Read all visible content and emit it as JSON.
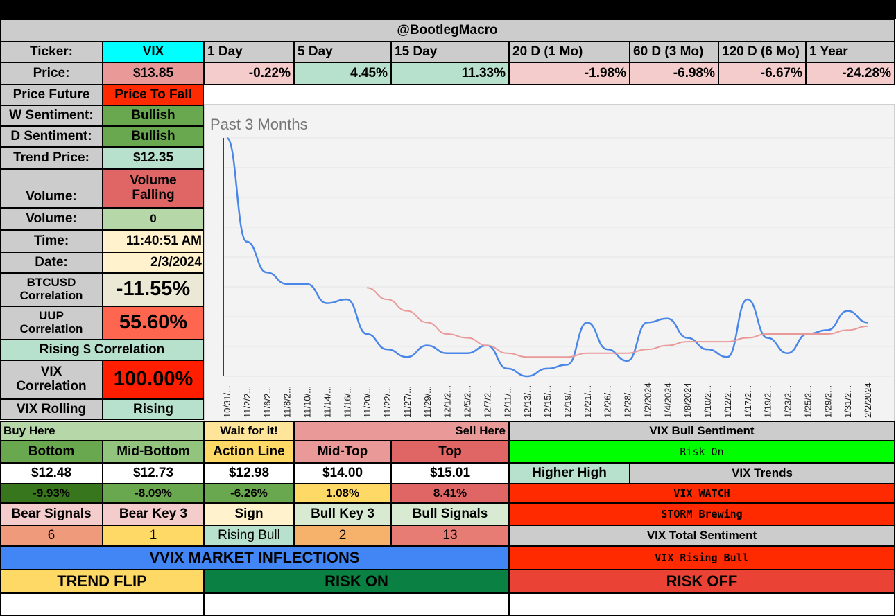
{
  "title": "@BootlegMacro",
  "header": {
    "ticker_label": "Ticker:",
    "ticker_value": "VIX",
    "price_label": "Price:",
    "price_value": "$13.85",
    "periods": [
      {
        "label": "1 Day",
        "value": "-0.22%",
        "color": "#f4cccc"
      },
      {
        "label": "5 Day",
        "value": "4.45%",
        "color": "#b7e1cd"
      },
      {
        "label": "15 Day",
        "value": "11.33%",
        "color": "#b7e1cd"
      },
      {
        "label": "20 D (1 Mo)",
        "value": "-1.98%",
        "color": "#f4cccc"
      },
      {
        "label": "60 D (3 Mo)",
        "value": "-6.98%",
        "color": "#f4cccc"
      },
      {
        "label": "120 D (6 Mo)",
        "value": "-6.67%",
        "color": "#f4cccc"
      },
      {
        "label": "1 Year",
        "value": "-24.28%",
        "color": "#f4cccc"
      }
    ]
  },
  "left": {
    "price_future_label": "Price Future",
    "price_future_value": "Price To Fall",
    "w_sent_label": "W Sentiment:",
    "w_sent_value": "Bullish",
    "d_sent_label": "D Sentiment:",
    "d_sent_value": "Bullish",
    "trend_label": "Trend Price:",
    "trend_value": "$12.35",
    "volume_label": "Volume:",
    "volume_value_1": "Volume",
    "volume_value_2": "Falling",
    "volume2_label": "Volume:",
    "volume2_value": "0",
    "time_label": "Time:",
    "time_value": "11:40:51 AM",
    "date_label": "Date:",
    "date_value": "2/3/2024",
    "btc_label_1": "BTCUSD",
    "btc_label_2": "Correlation",
    "btc_value": "-11.55%",
    "uup_label_1": "UUP",
    "uup_label_2": "Correlation",
    "uup_value": "55.60%",
    "rising_corr": "Rising $ Correlation",
    "vix_corr_label_1": "VIX",
    "vix_corr_label_2": "Correlation",
    "vix_corr_value": "100.00%",
    "vix_rolling_label": "VIX Rolling",
    "vix_rolling_value": "Rising"
  },
  "chart_data": {
    "type": "line",
    "title": "Past 3 Months",
    "x": [
      "10/31/...",
      "11/2/2...",
      "11/6/2...",
      "11/8/2...",
      "11/10/...",
      "11/14/...",
      "11/16/...",
      "11/20/...",
      "11/22/...",
      "11/27/...",
      "11/29/...",
      "12/1/2...",
      "12/5/2...",
      "12/7/2...",
      "12/11/...",
      "12/13/...",
      "12/15/...",
      "12/19/...",
      "12/21/...",
      "12/26/...",
      "12/28/...",
      "1/2/2024",
      "1/4/2024",
      "1/8/2024",
      "1/10/2...",
      "1/12/2...",
      "1/17/2...",
      "1/19/2...",
      "1/23/2...",
      "1/25/2...",
      "1/29/2...",
      "1/31/2...",
      "2/2/2024"
    ],
    "series": [
      {
        "color": "#4a86e8",
        "values": [
          18.1,
          15.4,
          14.6,
          14.3,
          14.3,
          13.8,
          13.9,
          13.0,
          12.6,
          12.4,
          12.7,
          12.5,
          12.5,
          12.7,
          12.1,
          11.9,
          12.1,
          12.2,
          13.3,
          12.6,
          12.3,
          13.3,
          13.4,
          12.9,
          12.6,
          12.4,
          13.9,
          12.9,
          12.5,
          13.0,
          13.1,
          13.6,
          13.3
        ]
      },
      {
        "color": "#ea9999",
        "values": [
          null,
          null,
          null,
          null,
          null,
          null,
          null,
          14.2,
          13.9,
          13.6,
          13.3,
          13.0,
          12.9,
          12.7,
          12.5,
          12.4,
          12.4,
          12.4,
          12.5,
          12.5,
          12.5,
          12.6,
          12.7,
          12.8,
          12.8,
          12.8,
          12.9,
          13.0,
          13.0,
          13.0,
          13.0,
          13.1,
          13.2
        ]
      }
    ],
    "ylim": [
      11.9,
      18.1
    ],
    "grid": true,
    "legend": "none"
  },
  "levels": {
    "buy_here": "Buy Here",
    "wait": "Wait for it!",
    "sell_here": "Sell Here",
    "items": [
      {
        "name": "Bottom",
        "value": "$12.48",
        "pct": "-9.93%"
      },
      {
        "name": "Mid-Bottom",
        "value": "$12.73",
        "pct": "-8.09%"
      },
      {
        "name": "Action Line",
        "value": "$12.98",
        "pct": "-6.26%"
      },
      {
        "name": "Mid-Top",
        "value": "$14.00",
        "pct": "1.08%"
      },
      {
        "name": "Top",
        "value": "$15.01",
        "pct": "8.41%"
      }
    ]
  },
  "signals": {
    "labels": [
      "Bear Signals",
      "Bear Key 3",
      "Sign",
      "Bull Key 3",
      "Bull Signals"
    ],
    "values": [
      "6",
      "1",
      "Rising Bull",
      "2",
      "13"
    ]
  },
  "right": {
    "bull_sentiment_label": "VIX Bull Sentiment",
    "risk_on": "Risk On",
    "higher_high": "Higher High",
    "vix_trends": "VIX Trends",
    "vix_watch": "VIX WATCH",
    "storm": "STORM Brewing",
    "total_sentiment": "VIX Total Sentiment",
    "rising_bull": "VIX Rising Bull"
  },
  "inflections": {
    "title": "VVIX MARKET INFLECTIONS",
    "trend_flip": "TREND FLIP",
    "risk_on": "RISK ON",
    "risk_off": "RISK OFF"
  }
}
